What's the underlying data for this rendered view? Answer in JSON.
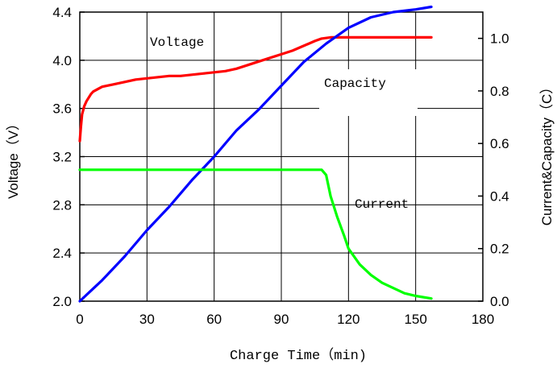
{
  "chart_data": {
    "type": "line",
    "xlabel": "Charge Time（min)",
    "ylabel_left": "Voltage（V）",
    "ylabel_right": "Current&Capacity（C）",
    "xlim": [
      0,
      180
    ],
    "ylim_left": [
      2.0,
      4.4
    ],
    "ylim_right": [
      0.0,
      1.1
    ],
    "x_ticks": [
      "0",
      "30",
      "60",
      "90",
      "120",
      "150",
      "180"
    ],
    "y_ticks_left": [
      "2.0",
      "2.4",
      "2.8",
      "3.2",
      "3.6",
      "4.0",
      "4.4"
    ],
    "y_ticks_right": [
      "0.0",
      "0.2",
      "0.4",
      "0.6",
      "0.8",
      "1.0"
    ],
    "grid": true,
    "annotations": [
      "Voltage",
      "Capacity",
      "Current"
    ],
    "series": [
      {
        "name": "Voltage",
        "axis": "left",
        "color": "#ff0000",
        "x": [
          0,
          0.5,
          1,
          2,
          3,
          4,
          5,
          6,
          8,
          10,
          15,
          20,
          25,
          30,
          35,
          40,
          45,
          50,
          55,
          60,
          65,
          70,
          75,
          80,
          85,
          90,
          95,
          100,
          105,
          108,
          112,
          120,
          130,
          140,
          150,
          157
        ],
        "y": [
          3.33,
          3.45,
          3.55,
          3.62,
          3.66,
          3.69,
          3.72,
          3.74,
          3.76,
          3.78,
          3.8,
          3.82,
          3.84,
          3.85,
          3.86,
          3.87,
          3.87,
          3.88,
          3.89,
          3.9,
          3.91,
          3.93,
          3.96,
          3.99,
          4.02,
          4.05,
          4.08,
          4.12,
          4.16,
          4.18,
          4.19,
          4.19,
          4.19,
          4.19,
          4.19,
          4.19
        ]
      },
      {
        "name": "Capacity",
        "axis": "right",
        "color": "#0000ff",
        "x": [
          0,
          5,
          10,
          20,
          30,
          40,
          50,
          60,
          70,
          80,
          90,
          100,
          110,
          120,
          130,
          140,
          150,
          157
        ],
        "y": [
          0.0,
          0.04,
          0.08,
          0.17,
          0.27,
          0.36,
          0.46,
          0.55,
          0.65,
          0.73,
          0.82,
          0.91,
          0.98,
          1.04,
          1.08,
          1.1,
          1.11,
          1.12
        ]
      },
      {
        "name": "Current",
        "axis": "right",
        "color": "#00ff00",
        "x": [
          0,
          20,
          40,
          60,
          80,
          100,
          108,
          110,
          112,
          115,
          118,
          120,
          125,
          130,
          135,
          140,
          145,
          150,
          157
        ],
        "y": [
          0.5,
          0.5,
          0.5,
          0.5,
          0.5,
          0.5,
          0.5,
          0.48,
          0.4,
          0.32,
          0.25,
          0.2,
          0.14,
          0.1,
          0.07,
          0.05,
          0.03,
          0.02,
          0.01
        ]
      }
    ]
  }
}
